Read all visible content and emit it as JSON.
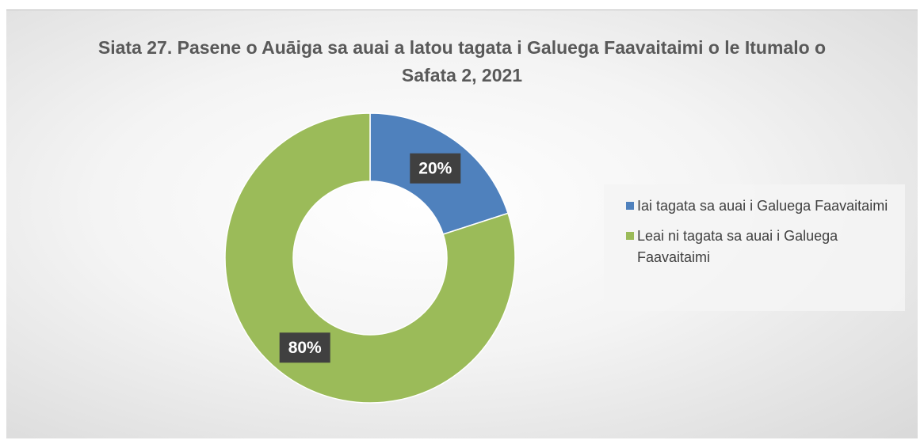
{
  "chart_data": {
    "type": "donut",
    "title": "Siata 27. Pasene o Auāiga sa auai a latou tagata i Galuega Faavaitaimi o le Itumalo o Safata 2, 2021",
    "categories": [
      "Iai tagata sa auai i Galuega Faavaitaimi",
      "Leai ni tagata sa auai i Galuega Faavaitaimi"
    ],
    "values": [
      20,
      80
    ],
    "value_labels": [
      "20%",
      "80%"
    ],
    "colors": [
      "#4f81bd",
      "#9bbb59"
    ],
    "legend": "right"
  }
}
